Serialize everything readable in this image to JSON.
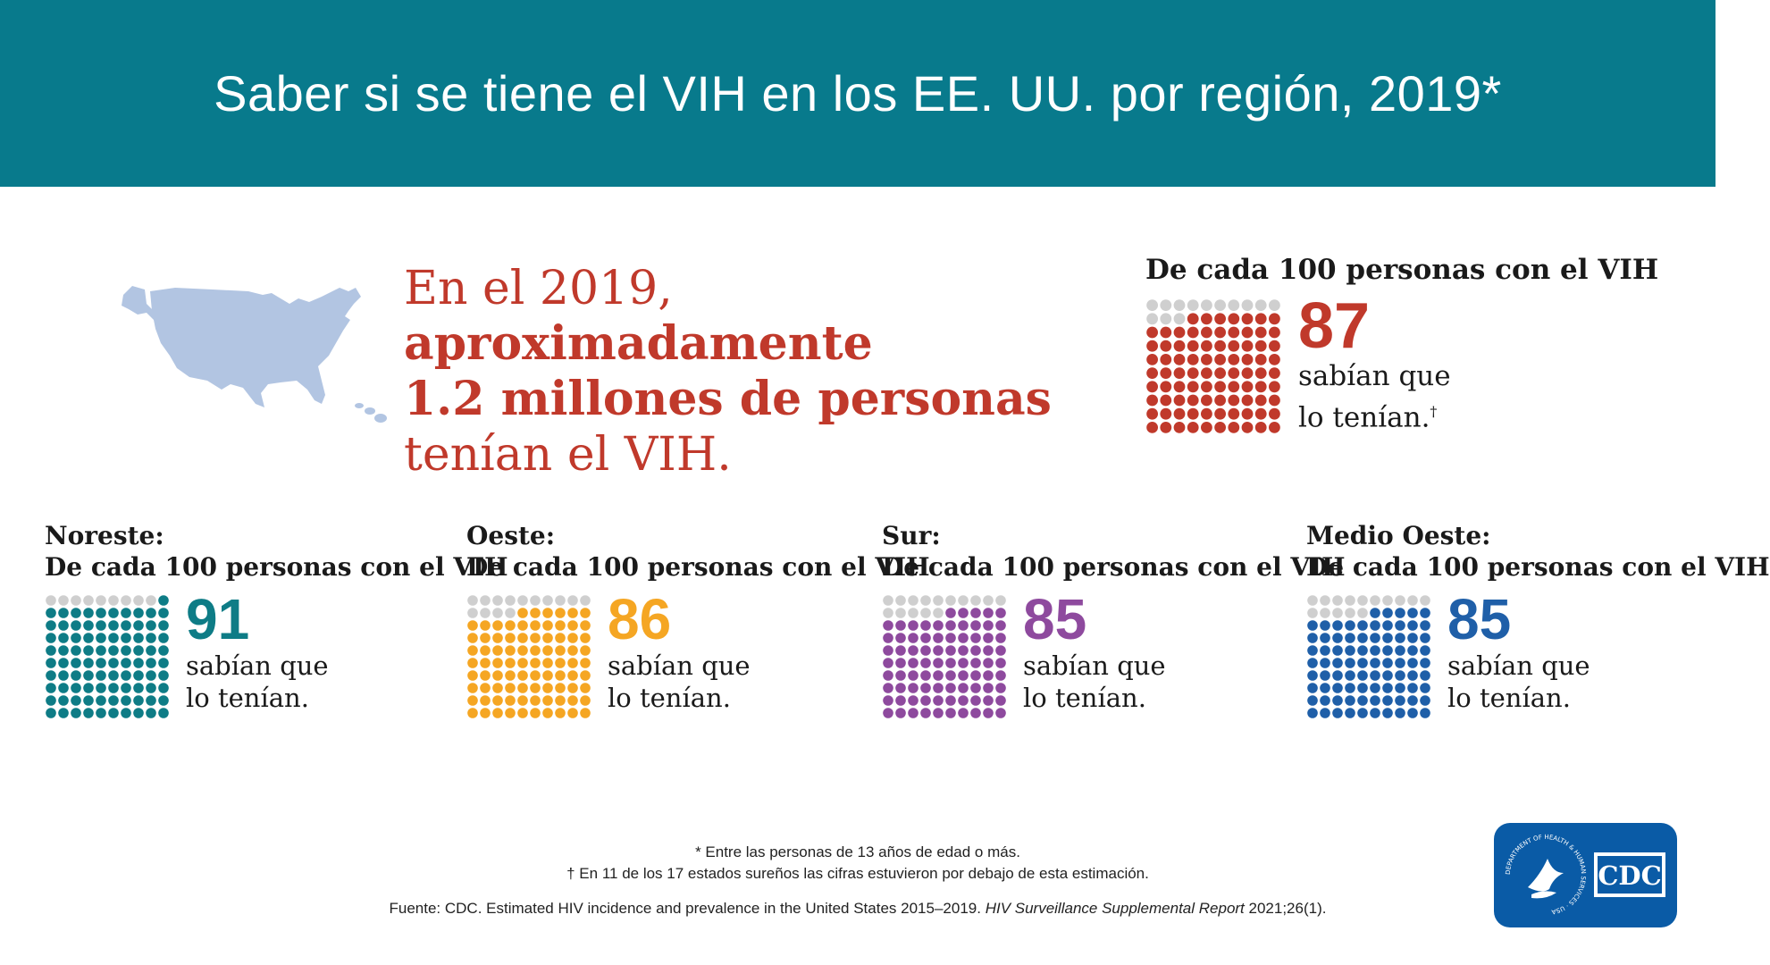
{
  "header": {
    "title": "Saber si se tiene el VIH en los EE. UU. por región, 2019*"
  },
  "headline": {
    "part1": "En el 2019, ",
    "part2": "aproximadamente",
    "line2": "1.2 millones de personas",
    "line3": "tenían el VIH."
  },
  "colors": {
    "header_bg": "#087a8c",
    "headline": "#c0392b",
    "map": "#b2c5e2",
    "dot_unfilled": "#cfcfcf",
    "logo_bg": "#0a5ba6"
  },
  "chart_data": [
    {
      "type": "unit",
      "region": "",
      "caption": "De cada 100 personas con el VIH",
      "value": 87,
      "total": 100,
      "text1": "sabían que",
      "text2": "lo tenían.",
      "mark": "†",
      "color": "#c0392b"
    },
    {
      "type": "unit",
      "region": "Noreste:",
      "caption": "De cada 100 personas con el VIH",
      "value": 91,
      "total": 100,
      "text1": "sabían que",
      "text2": "lo tenían.",
      "mark": "",
      "color": "#0e7c86"
    },
    {
      "type": "unit",
      "region": "Oeste:",
      "caption": "De cada 100 personas con el VIH",
      "value": 86,
      "total": 100,
      "text1": "sabían que",
      "text2": "lo tenían.",
      "mark": "",
      "color": "#f5a623"
    },
    {
      "type": "unit",
      "region": "Sur:",
      "caption": "De cada 100 personas con el VIH",
      "value": 85,
      "total": 100,
      "text1": "sabían que",
      "text2": "lo tenían.",
      "mark": "",
      "color": "#8e4a9e"
    },
    {
      "type": "unit",
      "region": "Medio Oeste:",
      "caption": "De cada 100 personas con el VIH",
      "value": 85,
      "total": 100,
      "text1": "sabían que",
      "text2": "lo tenían.",
      "mark": "",
      "color": "#1f5fa8"
    }
  ],
  "footnotes": {
    "line1": "* Entre las personas de 13 años de edad o más.",
    "line2": "† En 11 de los 17 estados sureños las cifras estuvieron por debajo de esta estimación."
  },
  "source": {
    "prefix": "Fuente: CDC. Estimated HIV incidence and prevalence in the United States 2015–2019. ",
    "journal": "HIV Surveillance Supplemental Report",
    "suffix": " 2021;26(1)."
  },
  "logo": {
    "text": "CDC",
    "ring_text": "DEPARTMENT OF HEALTH & HUMAN SERVICES · USA"
  }
}
